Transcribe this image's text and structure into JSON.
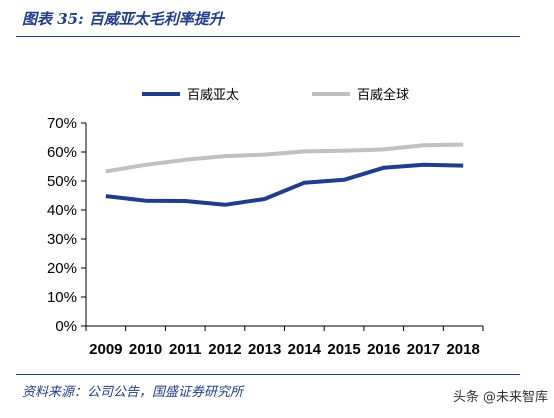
{
  "figure": {
    "title": "图表 35: 百威亚太毛利率提升",
    "source": "资料来源：公司公告，国盛证券研究所",
    "watermark": "头条 @未来智库"
  },
  "chart_data": {
    "type": "line",
    "title": "",
    "xlabel": "",
    "ylabel": "",
    "x": [
      "2009",
      "2010",
      "2011",
      "2012",
      "2013",
      "2014",
      "2015",
      "2016",
      "2017",
      "2018"
    ],
    "ylim": [
      0,
      70
    ],
    "yticks": [
      0,
      10,
      20,
      30,
      40,
      50,
      60,
      70
    ],
    "ytick_labels": [
      "0%",
      "10%",
      "20%",
      "30%",
      "40%",
      "50%",
      "60%",
      "70%"
    ],
    "grid": false,
    "legend_position": "top",
    "series": [
      {
        "name": "百威亚太",
        "color": "#1f3d8a",
        "values": [
          44.8,
          43.2,
          43.1,
          41.8,
          43.8,
          49.4,
          50.4,
          54.6,
          55.6,
          55.3
        ]
      },
      {
        "name": "百威全球",
        "color": "#c0c0c0",
        "values": [
          53.3,
          55.6,
          57.3,
          58.6,
          59.1,
          60.2,
          60.4,
          60.9,
          62.3,
          62.6
        ]
      }
    ]
  }
}
